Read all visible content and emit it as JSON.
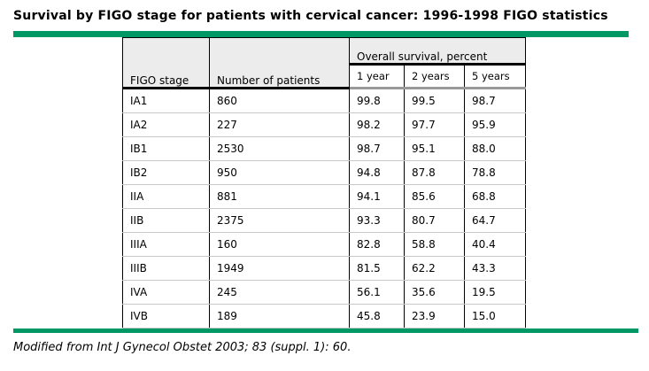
{
  "title": "Survival by FIGO stage for patients with cervical cancer: 1996-1998 FIGO statistics",
  "accent_color": "#009966",
  "table": {
    "headers": {
      "stage": "FIGO stage",
      "patients": "Number of patients",
      "survival_group": "Overall survival, percent",
      "year1": "1 year",
      "year2": "2 years",
      "year5": "5 years"
    },
    "rows": [
      {
        "stage": "IA1",
        "patients": "860",
        "y1": "99.8",
        "y2": "99.5",
        "y5": "98.7"
      },
      {
        "stage": "IA2",
        "patients": "227",
        "y1": "98.2",
        "y2": "97.7",
        "y5": "95.9"
      },
      {
        "stage": "IB1",
        "patients": "2530",
        "y1": "98.7",
        "y2": "95.1",
        "y5": "88.0"
      },
      {
        "stage": "IB2",
        "patients": "950",
        "y1": "94.8",
        "y2": "87.8",
        "y5": "78.8"
      },
      {
        "stage": "IIA",
        "patients": "881",
        "y1": "94.1",
        "y2": "85.6",
        "y5": "68.8"
      },
      {
        "stage": "IIB",
        "patients": "2375",
        "y1": "93.3",
        "y2": "80.7",
        "y5": "64.7"
      },
      {
        "stage": "IIIA",
        "patients": "160",
        "y1": "82.8",
        "y2": "58.8",
        "y5": "40.4"
      },
      {
        "stage": "IIIB",
        "patients": "1949",
        "y1": "81.5",
        "y2": "62.2",
        "y5": "43.3"
      },
      {
        "stage": "IVA",
        "patients": "245",
        "y1": "56.1",
        "y2": "35.6",
        "y5": "19.5"
      },
      {
        "stage": "IVB",
        "patients": "189",
        "y1": "45.8",
        "y2": "23.9",
        "y5": "15.0"
      }
    ]
  },
  "footer": "Modified from Int J Gynecol Obstet 2003; 83 (suppl. 1): 60."
}
